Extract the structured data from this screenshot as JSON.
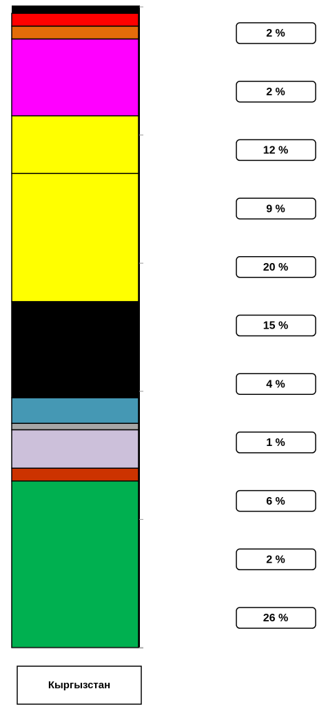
{
  "chart_data": {
    "type": "bar",
    "stacked": true,
    "categories": [
      "Кыргызстан"
    ],
    "series": [
      {
        "color": "#ff0000",
        "values": [
          2
        ],
        "value_labels": [
          "2 %"
        ]
      },
      {
        "color": "#e36c0a",
        "values": [
          2
        ],
        "value_labels": [
          "2 %"
        ]
      },
      {
        "color": "#ff00ff",
        "values": [
          12
        ],
        "value_labels": [
          "12 %"
        ]
      },
      {
        "color": "#ffff00",
        "values": [
          9
        ],
        "value_labels": [
          "9 %"
        ]
      },
      {
        "color": "#ffff00",
        "values": [
          20
        ],
        "value_labels": [
          "20 %"
        ]
      },
      {
        "color": "#000000",
        "values": [
          15
        ],
        "value_labels": [
          "15 %"
        ]
      },
      {
        "color": "#4598b4",
        "values": [
          4
        ],
        "value_labels": [
          "4 %"
        ]
      },
      {
        "color": "#a6a6a6",
        "values": [
          1
        ],
        "value_labels": [
          "1 %"
        ]
      },
      {
        "color": "#ccc0da",
        "values": [
          6
        ],
        "value_labels": [
          "6 %"
        ]
      },
      {
        "color": "#cc3300",
        "values": [
          2
        ],
        "value_labels": [
          "2 %"
        ]
      },
      {
        "color": "#00b050",
        "values": [
          26
        ],
        "value_labels": [
          "26 %"
        ]
      }
    ],
    "ylim": [
      0,
      100
    ],
    "yticks": [
      0,
      20,
      40,
      60,
      80,
      100
    ]
  }
}
